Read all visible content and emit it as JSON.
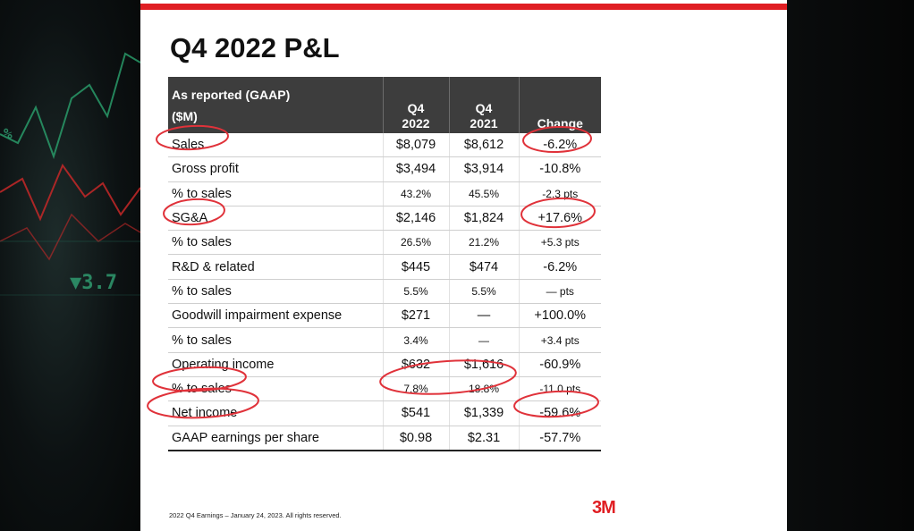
{
  "slide": {
    "title": "Q4 2022 P&L",
    "accent_color": "#e01e23",
    "footer": "2022 Q4 Earnings – January 24, 2023. All rights reserved.",
    "logo_text": "3M",
    "table": {
      "header": {
        "label_line1": "As reported (GAAP)",
        "label_line2": "($M)",
        "col_2022_line1": "Q4",
        "col_2022_line2": "2022",
        "col_2021_line1": "Q4",
        "col_2021_line2": "2021",
        "col_change": "Change"
      },
      "rows": [
        {
          "label": "Sales",
          "q4_2022": "$8,079",
          "q4_2021": "$8,612",
          "change": "-6.2%"
        },
        {
          "label": "Gross profit",
          "q4_2022": "$3,494",
          "q4_2021": "$3,914",
          "change": "-10.8%"
        },
        {
          "label": "% to sales",
          "q4_2022": "43.2%",
          "q4_2021": "45.5%",
          "change": "-2.3 pts"
        },
        {
          "label": "SG&A",
          "q4_2022": "$2,146",
          "q4_2021": "$1,824",
          "change": "+17.6%"
        },
        {
          "label": "% to sales",
          "q4_2022": "26.5%",
          "q4_2021": "21.2%",
          "change": "+5.3 pts"
        },
        {
          "label": "R&D & related",
          "q4_2022": "$445",
          "q4_2021": "$474",
          "change": "-6.2%"
        },
        {
          "label": "% to sales",
          "q4_2022": "5.5%",
          "q4_2021": "5.5%",
          "change": "— pts"
        },
        {
          "label": "Goodwill impairment expense",
          "q4_2022": "$271",
          "q4_2021": "—",
          "change": "+100.0%"
        },
        {
          "label": "% to sales",
          "q4_2022": "3.4%",
          "q4_2021": "—",
          "change": "+3.4 pts"
        },
        {
          "label": "Operating income",
          "q4_2022": "$632",
          "q4_2021": "$1,616",
          "change": "-60.9%"
        },
        {
          "label": "% to sales",
          "q4_2022": "7.8%",
          "q4_2021": "18.8%",
          "change": "-11.0 pts"
        },
        {
          "label": "Net income",
          "q4_2022": "$541",
          "q4_2021": "$1,339",
          "change": "-59.6%"
        },
        {
          "label": "GAAP earnings per share",
          "q4_2022": "$0.98",
          "q4_2021": "$2.31",
          "change": "-57.7%"
        }
      ]
    }
  },
  "annotation": {
    "ink_color": "#e0323a",
    "circled_items": [
      "Sales",
      "-6.2%",
      "SG&A",
      "+17.6%",
      "% to sales",
      "7.8%",
      "18.8%",
      "Net income",
      "-59.6%"
    ]
  },
  "background": {
    "ticker_text": "▼3.7",
    "pct_text": "%"
  }
}
